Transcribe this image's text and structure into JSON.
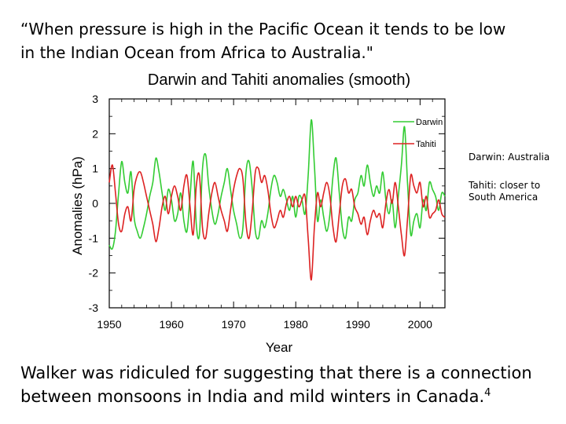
{
  "intro": {
    "line1": "“When pressure is high in the Pacific Ocean it tends to be low",
    "line2": "in the Indian Ocean from Africa to Australia.\""
  },
  "notes": {
    "darwin": "Darwin: Australia",
    "tahiti": "Tahiti: closer to South America"
  },
  "footer": {
    "line1": "Walker was ridiculed for suggesting that there is a connection",
    "line2": "between monsoons in India and mild winters in Canada.",
    "footnote_mark": "4"
  },
  "chart_data": {
    "type": "line",
    "title": "Darwin and Tahiti anomalies (smooth)",
    "xlabel": "Year",
    "ylabel": "Anomalies (hPa)",
    "xlim": [
      1950,
      2004
    ],
    "ylim": [
      -3,
      3
    ],
    "xticks": [
      1950,
      1960,
      1970,
      1980,
      1990,
      2000
    ],
    "yticks": [
      3,
      2,
      1,
      0,
      -1,
      -2,
      -3
    ],
    "legend": "top-right",
    "series": [
      {
        "name": "Darwin",
        "color": "#33cc33",
        "x": [
          1950,
          1950.5,
          1951,
          1951.5,
          1952,
          1952.5,
          1953,
          1953.5,
          1954,
          1954.5,
          1955,
          1955.5,
          1956,
          1956.5,
          1957,
          1957.5,
          1958,
          1958.5,
          1959,
          1959.5,
          1960,
          1960.5,
          1961,
          1961.5,
          1962,
          1962.5,
          1963,
          1963.5,
          1964,
          1964.5,
          1965,
          1965.5,
          1966,
          1966.5,
          1967,
          1967.5,
          1968,
          1968.5,
          1969,
          1969.5,
          1970,
          1970.5,
          1971,
          1971.5,
          1972,
          1972.5,
          1973,
          1973.5,
          1974,
          1974.5,
          1975,
          1975.5,
          1976,
          1976.5,
          1977,
          1977.5,
          1978,
          1978.5,
          1979,
          1979.5,
          1980,
          1980.5,
          1981,
          1981.5,
          1982,
          1982.5,
          1983,
          1983.5,
          1984,
          1984.5,
          1985,
          1985.5,
          1986,
          1986.5,
          1987,
          1987.5,
          1988,
          1988.5,
          1989,
          1989.5,
          1990,
          1990.5,
          1991,
          1991.5,
          1992,
          1992.5,
          1993,
          1993.5,
          1994,
          1994.5,
          1995,
          1995.5,
          1996,
          1996.5,
          1997,
          1997.5,
          1998,
          1998.5,
          1999,
          1999.5,
          2000,
          2000.5,
          2001,
          2001.5,
          2002,
          2002.5,
          2003,
          2003.5,
          2004
        ],
        "y": [
          -1.2,
          -1.3,
          -0.8,
          0.3,
          1.2,
          0.6,
          0.3,
          0.9,
          -0.4,
          -0.8,
          -1.0,
          -0.7,
          -0.3,
          0.2,
          0.6,
          1.3,
          0.9,
          0.3,
          -0.2,
          0.4,
          0.1,
          -0.5,
          -0.3,
          0.3,
          -0.5,
          -0.8,
          0.2,
          1.2,
          -0.6,
          -0.9,
          1.0,
          1.4,
          0.5,
          -0.2,
          -0.6,
          -0.3,
          0.2,
          0.6,
          1.0,
          0.4,
          -0.2,
          -0.6,
          -1.0,
          -0.7,
          0.9,
          1.2,
          0.4,
          -0.8,
          -1.0,
          -0.5,
          -0.7,
          -0.3,
          0.4,
          0.8,
          0.6,
          0.2,
          0.4,
          0.1,
          -0.2,
          0.2,
          -0.4,
          0.2,
          0.1,
          -0.3,
          0.8,
          2.4,
          1.1,
          -0.5,
          0.1,
          -0.4,
          -0.8,
          -0.3,
          0.8,
          1.3,
          0.3,
          -0.7,
          -1.0,
          -0.4,
          -0.5,
          0.1,
          0.3,
          0.8,
          0.5,
          1.1,
          0.6,
          0.2,
          0.5,
          0.3,
          0.9,
          0.1,
          -0.3,
          0.1,
          -0.7,
          0.2,
          1.1,
          2.2,
          0.5,
          -0.9,
          -0.5,
          -0.3,
          -0.7,
          0.1,
          -0.2,
          0.6,
          0.4,
          0.2,
          -0.2,
          0.3,
          0.2
        ],
        "legend_label": "Darwin"
      },
      {
        "name": "Tahiti",
        "color": "#dd2222",
        "x": [
          1950,
          1950.5,
          1951,
          1951.5,
          1952,
          1952.5,
          1953,
          1953.5,
          1954,
          1954.5,
          1955,
          1955.5,
          1956,
          1956.5,
          1957,
          1957.5,
          1958,
          1958.5,
          1959,
          1959.5,
          1960,
          1960.5,
          1961,
          1961.5,
          1962,
          1962.5,
          1963,
          1963.5,
          1964,
          1964.5,
          1965,
          1965.5,
          1966,
          1966.5,
          1967,
          1967.5,
          1968,
          1968.5,
          1969,
          1969.5,
          1970,
          1970.5,
          1971,
          1971.5,
          1972,
          1972.5,
          1973,
          1973.5,
          1974,
          1974.5,
          1975,
          1975.5,
          1976,
          1976.5,
          1977,
          1977.5,
          1978,
          1978.5,
          1979,
          1979.5,
          1980,
          1980.5,
          1981,
          1981.5,
          1982,
          1982.5,
          1983,
          1983.5,
          1984,
          1984.5,
          1985,
          1985.5,
          1986,
          1986.5,
          1987,
          1987.5,
          1988,
          1988.5,
          1989,
          1989.5,
          1990,
          1990.5,
          1991,
          1991.5,
          1992,
          1992.5,
          1993,
          1993.5,
          1994,
          1994.5,
          1995,
          1995.5,
          1996,
          1996.5,
          1997,
          1997.5,
          1998,
          1998.5,
          1999,
          1999.5,
          2000,
          2000.5,
          2001,
          2001.5,
          2002,
          2002.5,
          2003,
          2003.5,
          2004
        ],
        "y": [
          0.6,
          1.1,
          0.3,
          -0.6,
          -0.8,
          -0.3,
          -0.1,
          -0.5,
          0.4,
          0.8,
          0.9,
          0.6,
          0.2,
          -0.2,
          -0.6,
          -1.1,
          -0.7,
          -0.1,
          0.2,
          -0.3,
          0.2,
          0.5,
          0.2,
          -0.2,
          0.5,
          0.8,
          -0.1,
          -0.9,
          0.5,
          0.8,
          -0.7,
          -1.0,
          -0.3,
          0.3,
          0.6,
          0.2,
          -0.2,
          -0.5,
          -0.8,
          -0.2,
          0.4,
          0.8,
          1.0,
          0.7,
          -0.6,
          -1.0,
          -0.2,
          0.9,
          1.0,
          0.6,
          0.8,
          0.4,
          -0.3,
          -0.7,
          -0.5,
          -0.2,
          -0.4,
          0.0,
          0.2,
          -0.1,
          0.2,
          -0.1,
          0.1,
          0.2,
          -1.0,
          -2.2,
          -0.7,
          0.3,
          -0.1,
          0.3,
          0.6,
          0.2,
          -0.7,
          -1.1,
          -0.3,
          0.5,
          0.7,
          0.3,
          0.4,
          -0.1,
          -0.3,
          -0.6,
          -0.4,
          -0.9,
          -0.5,
          -0.2,
          -0.4,
          -0.3,
          -0.7,
          0.0,
          0.4,
          0.0,
          0.6,
          -0.1,
          -0.9,
          -1.5,
          -0.4,
          0.8,
          0.5,
          0.3,
          0.6,
          -0.1,
          0.2,
          -0.4,
          -0.3,
          -0.2,
          0.1,
          -0.3,
          -0.4
        ],
        "legend_label": "Tahiti"
      }
    ]
  }
}
